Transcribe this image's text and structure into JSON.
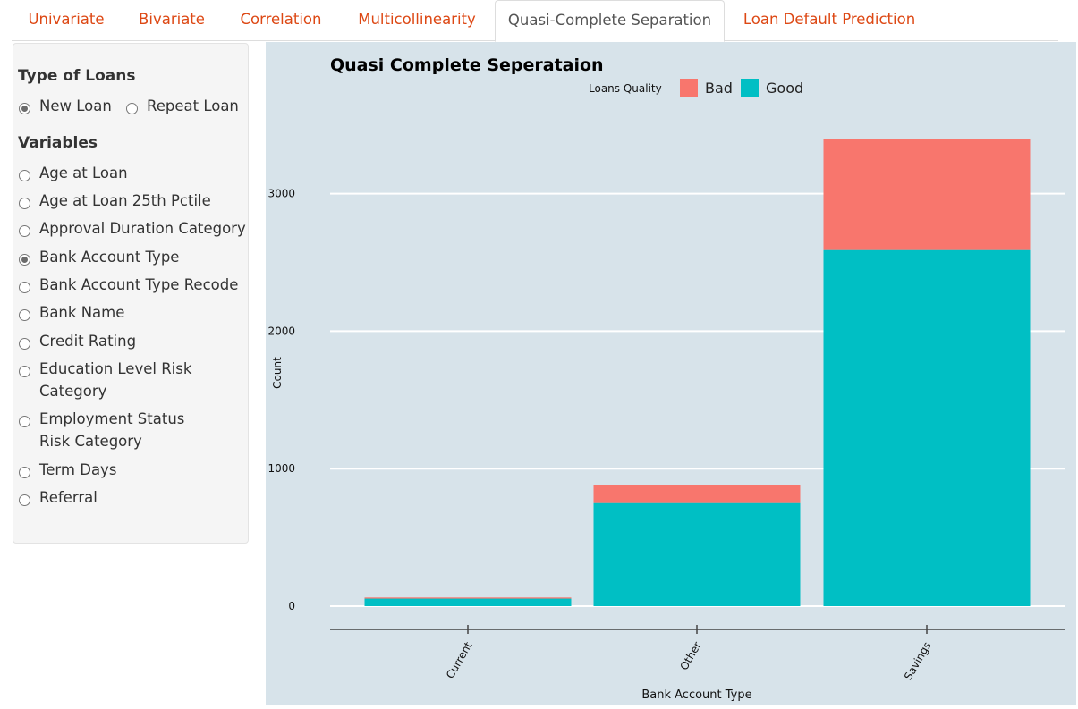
{
  "tabs": [
    {
      "label": "Univariate",
      "active": false
    },
    {
      "label": "Bivariate",
      "active": false
    },
    {
      "label": "Correlation",
      "active": false
    },
    {
      "label": "Multicollinearity",
      "active": false
    },
    {
      "label": "Quasi-Complete Separation",
      "active": true
    },
    {
      "label": "Loan Default Prediction",
      "active": false
    }
  ],
  "sidebar": {
    "loan_type_label": "Type of Loans",
    "loan_types": [
      {
        "label": "New Loan",
        "checked": true
      },
      {
        "label": "Repeat Loan",
        "checked": false
      }
    ],
    "variables_label": "Variables",
    "variables": [
      {
        "label": "Age at Loan",
        "checked": false
      },
      {
        "label": "Age at Loan 25th Pctile",
        "checked": false
      },
      {
        "label": "Approval Duration Category",
        "checked": false
      },
      {
        "label": "Bank Account Type",
        "checked": true
      },
      {
        "label": "Bank Account Type Recode",
        "checked": false
      },
      {
        "label": "Bank Name",
        "checked": false
      },
      {
        "label": "Credit Rating",
        "checked": false
      },
      {
        "label": "Education Level Risk Category",
        "checked": false
      },
      {
        "label": "Employment Status Risk Category",
        "checked": false
      },
      {
        "label": "Term Days",
        "checked": false
      },
      {
        "label": "Referral",
        "checked": false
      }
    ]
  },
  "chart_data": {
    "type": "bar",
    "stacked": true,
    "title": "Quasi Complete Seperataion",
    "legend_title": "Loans Quality",
    "legend_position": "top",
    "xlabel": "Bank Account Type",
    "ylabel": "Count",
    "categories": [
      "Current",
      "Other",
      "Savings"
    ],
    "series": [
      {
        "name": "Good",
        "color": "#00bfc4",
        "values": [
          55,
          750,
          2590
        ]
      },
      {
        "name": "Bad",
        "color": "#f8766d",
        "values": [
          8,
          130,
          810
        ]
      }
    ],
    "yticks": [
      0,
      1000,
      2000,
      3000
    ],
    "ylim": [
      0,
      3400
    ],
    "grid": true,
    "background": "#d7e3ea"
  }
}
